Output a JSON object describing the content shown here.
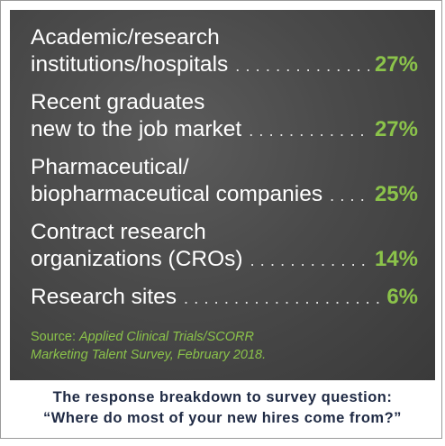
{
  "chart_data": {
    "type": "table",
    "rows": [
      {
        "label_lines": [
          "Academic/research",
          "institutions/hospitals"
        ],
        "value": 27,
        "display": "27%"
      },
      {
        "label_lines": [
          "Recent graduates",
          "new to the job market"
        ],
        "value": 27,
        "display": "27%"
      },
      {
        "label_lines": [
          "Pharmaceutical/",
          "biopharmaceutical companies"
        ],
        "value": 25,
        "display": "25%"
      },
      {
        "label_lines": [
          "Contract research",
          "organizations (CROs)"
        ],
        "value": 14,
        "display": "14%"
      },
      {
        "label_lines": [
          "Research sites"
        ],
        "value": 6,
        "display": "6%"
      }
    ],
    "source": {
      "prefix": "Source:",
      "line1": "Applied Clinical Trials/SCORR",
      "line2": "Marketing Talent Survey, February 2018."
    }
  },
  "caption": {
    "line1": "The response breakdown to survey question:",
    "line2": "“Where do most of your new hires come from?”"
  },
  "colors": {
    "panel": "#4a4a4a",
    "label_text": "#ffffff",
    "percent_text": "#8bc34a",
    "caption_text": "#1f2a44"
  }
}
